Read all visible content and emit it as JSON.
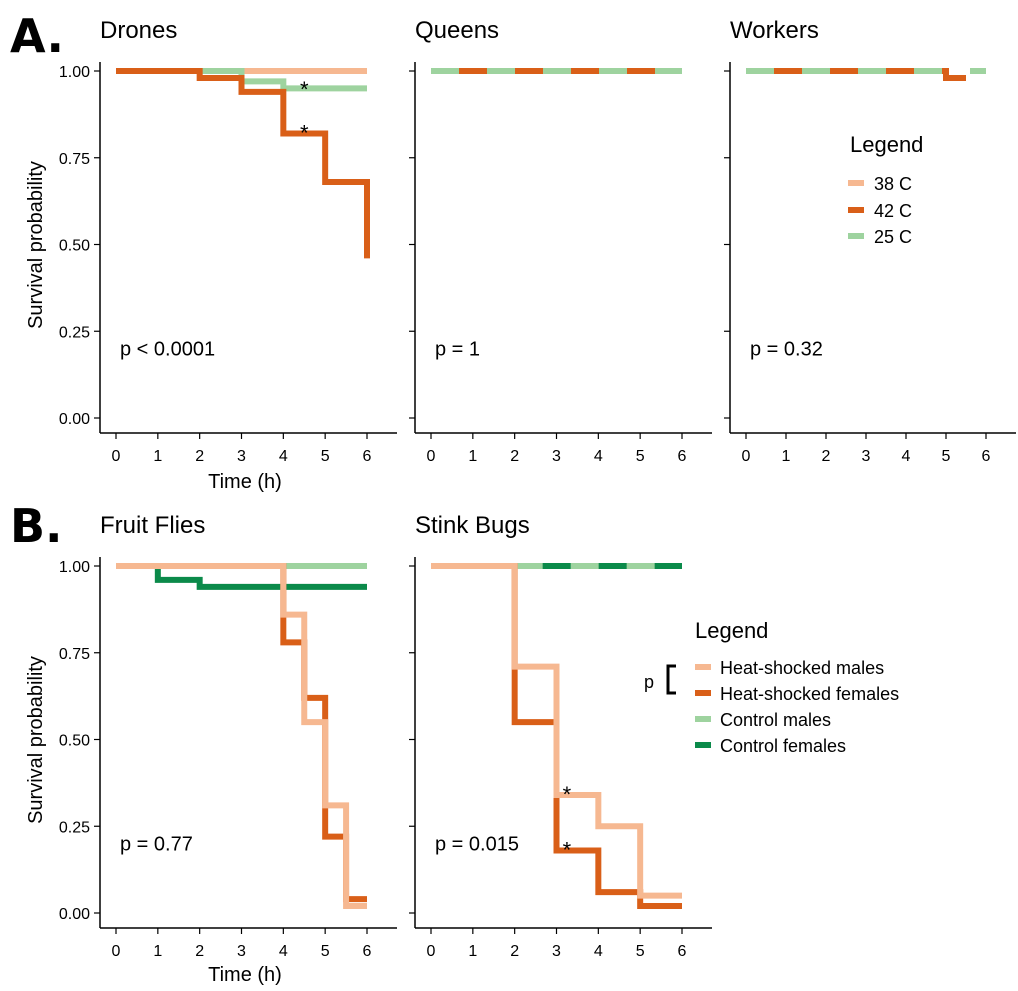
{
  "figure": {
    "label_a": "A.",
    "label_b": "B.",
    "xlabel": "Time (h)",
    "ylabel": "Survival probability"
  },
  "colors": {
    "38 C": "#F6B891",
    "42 C": "#D95F18",
    "25 C": "#9ED39F",
    "Heat-shocked males": "#F6B891",
    "Heat-shocked females": "#D95F18",
    "Control males": "#9ED39F",
    "Control females": "#0B8A4A"
  },
  "legend_a": {
    "title": "Legend",
    "entries": [
      "38 C",
      "42 C",
      "25 C"
    ]
  },
  "legend_b": {
    "title": "Legend",
    "bracket_label": "p",
    "entries": [
      "Heat-shocked males",
      "Heat-shocked females",
      "Control males",
      "Control females"
    ]
  },
  "chart_data": [
    {
      "type": "line",
      "step": true,
      "title": "Drones",
      "xlabel": "Time (h)",
      "ylabel": "Survival probability",
      "xlim": [
        0,
        6
      ],
      "ylim": [
        0,
        1
      ],
      "xticks": [
        0,
        1,
        2,
        3,
        4,
        5,
        6
      ],
      "yticks": [
        0,
        0.25,
        0.5,
        0.75,
        1
      ],
      "ytick_labels": [
        "0.00",
        "0.25",
        "0.50",
        "0.75",
        "1.00"
      ],
      "pvalue": "p < 0.0001",
      "series": [
        {
          "name": "38 C",
          "x": [
            0,
            6
          ],
          "y": [
            1,
            1
          ]
        },
        {
          "name": "25 C",
          "x": [
            0,
            3,
            4,
            6
          ],
          "y": [
            1,
            0.97,
            0.95,
            0.95
          ]
        },
        {
          "name": "42 C",
          "x": [
            0,
            2,
            3,
            4,
            5,
            6
          ],
          "y": [
            1,
            0.98,
            0.94,
            0.82,
            0.68,
            0.46
          ]
        }
      ],
      "annotations": [
        {
          "text": "*",
          "x": 4.5,
          "y": 0.965
        },
        {
          "text": "*",
          "x": 4.5,
          "y": 0.84
        }
      ]
    },
    {
      "type": "line",
      "step": true,
      "title": "Queens",
      "xlim": [
        0,
        6
      ],
      "ylim": [
        0,
        1
      ],
      "xticks": [
        0,
        1,
        2,
        3,
        4,
        5,
        6
      ],
      "pvalue": "p = 1",
      "series": [
        {
          "name": "42 C",
          "x": [
            0,
            6
          ],
          "y": [
            1,
            1
          ]
        },
        {
          "name": "25 C",
          "x": [
            0,
            6
          ],
          "y": [
            1,
            1
          ]
        }
      ]
    },
    {
      "type": "line",
      "step": true,
      "title": "Workers",
      "xlim": [
        0,
        6
      ],
      "ylim": [
        0,
        1
      ],
      "xticks": [
        0,
        1,
        2,
        3,
        4,
        5,
        6
      ],
      "pvalue": "p = 0.32",
      "series": [
        {
          "name": "42 C",
          "x": [
            0,
            5,
            5.5
          ],
          "y": [
            1,
            0.98,
            0.98
          ]
        },
        {
          "name": "25 C",
          "x": [
            0,
            6
          ],
          "y": [
            1,
            1
          ]
        }
      ]
    },
    {
      "type": "line",
      "step": true,
      "title": "Fruit Flies",
      "xlabel": "Time (h)",
      "ylabel": "Survival probability",
      "xlim": [
        0,
        6
      ],
      "ylim": [
        0,
        1
      ],
      "xticks": [
        0,
        1,
        2,
        3,
        4,
        5,
        6
      ],
      "yticks": [
        0,
        0.25,
        0.5,
        0.75,
        1
      ],
      "ytick_labels": [
        "0.00",
        "0.25",
        "0.50",
        "0.75",
        "1.00"
      ],
      "pvalue": "p = 0.77",
      "series": [
        {
          "name": "Control males",
          "x": [
            0,
            6
          ],
          "y": [
            1,
            1
          ]
        },
        {
          "name": "Control females",
          "x": [
            0,
            1,
            2,
            6
          ],
          "y": [
            1,
            0.96,
            0.94,
            0.94
          ]
        },
        {
          "name": "Heat-shocked females",
          "x": [
            0,
            4,
            4.5,
            5,
            5.5,
            6
          ],
          "y": [
            1,
            0.78,
            0.62,
            0.22,
            0.04,
            0.04
          ]
        },
        {
          "name": "Heat-shocked males",
          "x": [
            0,
            4,
            4.5,
            5,
            5.5,
            6
          ],
          "y": [
            1,
            0.86,
            0.55,
            0.31,
            0.02,
            0.02
          ]
        }
      ]
    },
    {
      "type": "line",
      "step": true,
      "title": "Stink Bugs",
      "xlim": [
        0,
        6
      ],
      "ylim": [
        0,
        1
      ],
      "xticks": [
        0,
        1,
        2,
        3,
        4,
        5,
        6
      ],
      "pvalue": "p = 0.015",
      "series": [
        {
          "name": "Control females",
          "x": [
            0,
            6
          ],
          "y": [
            1,
            1
          ]
        },
        {
          "name": "Control males",
          "x": [
            0,
            6
          ],
          "y": [
            1,
            1
          ]
        },
        {
          "name": "Heat-shocked females",
          "x": [
            0,
            2,
            3,
            4,
            5,
            6
          ],
          "y": [
            1,
            0.55,
            0.18,
            0.06,
            0.02,
            0.02
          ]
        },
        {
          "name": "Heat-shocked males",
          "x": [
            0,
            2,
            3,
            4,
            5,
            6
          ],
          "y": [
            1,
            0.71,
            0.34,
            0.25,
            0.05,
            0.05
          ]
        }
      ],
      "annotations": [
        {
          "text": "*",
          "x": 3.25,
          "y": 0.36
        },
        {
          "text": "*",
          "x": 3.25,
          "y": 0.2
        }
      ]
    }
  ]
}
